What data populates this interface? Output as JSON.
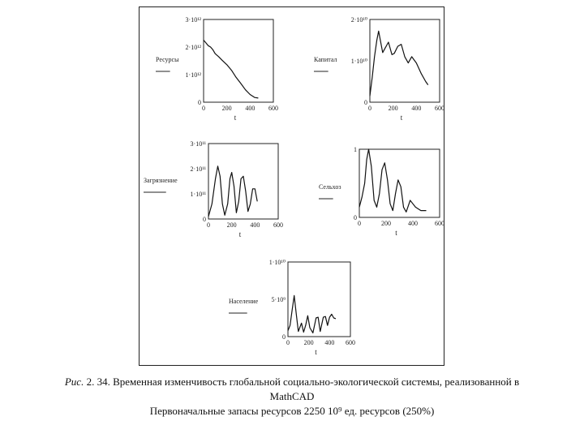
{
  "chart_data": [
    {
      "type": "line",
      "ylabel": "Ресурсы",
      "xlabel": "t",
      "xlim": [
        0,
        600
      ],
      "ylim": [
        0,
        3000000000000
      ],
      "x_ticks": [
        "0",
        "200",
        "400",
        "600"
      ],
      "y_ticks": [
        {
          "value": 3000000000000,
          "label": "3·10¹²"
        },
        {
          "value": 2000000000000,
          "label": "2·10¹²"
        },
        {
          "value": 1000000000000,
          "label": "1·10¹²"
        },
        {
          "value": 0,
          "label": "0"
        }
      ],
      "series": [
        {
          "x": [
            0,
            20,
            40,
            60,
            80,
            100,
            130,
            160,
            200,
            240,
            280,
            320,
            360,
            400,
            440,
            470
          ],
          "y": [
            2250000000000,
            2150000000000,
            2050000000000,
            2000000000000,
            1900000000000,
            1760000000000,
            1650000000000,
            1520000000000,
            1360000000000,
            1160000000000,
            900000000000,
            680000000000,
            450000000000,
            280000000000,
            170000000000,
            150000000000
          ]
        }
      ]
    },
    {
      "type": "line",
      "ylabel": "Капитал",
      "xlabel": "t",
      "xlim": [
        0,
        600
      ],
      "ylim": [
        0,
        20000000000
      ],
      "x_ticks": [
        "0",
        "200",
        "400",
        "600"
      ],
      "y_ticks": [
        {
          "value": 20000000000,
          "label": "2·10¹⁰"
        },
        {
          "value": 10000000000,
          "label": "1·10¹⁰"
        },
        {
          "value": 0,
          "label": "0"
        }
      ],
      "series": [
        {
          "x": [
            0,
            20,
            40,
            60,
            75,
            90,
            110,
            130,
            160,
            190,
            210,
            240,
            270,
            300,
            330,
            360,
            400,
            440,
            480,
            500
          ],
          "y": [
            1500000000,
            6000000000,
            11000000000,
            15000000000,
            17200000000,
            15000000000,
            12000000000,
            13000000000,
            14500000000,
            11500000000,
            11800000000,
            13500000000,
            14000000000,
            11000000000,
            9500000000,
            11000000000,
            9500000000,
            7000000000,
            5000000000,
            4200000000
          ]
        }
      ]
    },
    {
      "type": "line",
      "ylabel": "Загрязнение",
      "xlabel": "t",
      "xlim": [
        0,
        600
      ],
      "ylim": [
        0,
        300000000000
      ],
      "x_ticks": [
        "0",
        "200",
        "400",
        "600"
      ],
      "y_ticks": [
        {
          "value": 300000000000,
          "label": "3·10¹¹"
        },
        {
          "value": 200000000000,
          "label": "2·10¹¹"
        },
        {
          "value": 100000000000,
          "label": "1·10¹¹"
        },
        {
          "value": 0,
          "label": "0"
        }
      ],
      "series": [
        {
          "x": [
            0,
            30,
            60,
            80,
            100,
            120,
            140,
            165,
            185,
            200,
            220,
            240,
            260,
            280,
            300,
            320,
            340,
            360,
            380,
            400,
            420
          ],
          "y": [
            10000000000,
            60000000000,
            160000000000,
            210000000000,
            170000000000,
            60000000000,
            15000000000,
            60000000000,
            160000000000,
            185000000000,
            130000000000,
            25000000000,
            70000000000,
            160000000000,
            170000000000,
            110000000000,
            30000000000,
            60000000000,
            120000000000,
            120000000000,
            70000000000
          ]
        }
      ]
    },
    {
      "type": "line",
      "ylabel": "Сельхоз",
      "xlabel": "t",
      "xlim": [
        0,
        600
      ],
      "ylim": [
        0,
        1
      ],
      "x_ticks": [
        "0",
        "200",
        "400",
        "600"
      ],
      "y_ticks": [
        {
          "value": 1,
          "label": "1"
        },
        {
          "value": 0,
          "label": "0"
        }
      ],
      "series": [
        {
          "x": [
            0,
            20,
            40,
            55,
            70,
            90,
            110,
            130,
            150,
            170,
            190,
            210,
            230,
            250,
            270,
            290,
            310,
            330,
            350,
            380,
            420,
            460,
            500
          ],
          "y": [
            0.15,
            0.3,
            0.5,
            0.85,
            1.0,
            0.75,
            0.25,
            0.15,
            0.35,
            0.7,
            0.8,
            0.55,
            0.2,
            0.1,
            0.35,
            0.55,
            0.45,
            0.15,
            0.08,
            0.25,
            0.15,
            0.1,
            0.1
          ]
        }
      ]
    },
    {
      "type": "line",
      "ylabel": "Население",
      "xlabel": "t",
      "xlim": [
        0,
        600
      ],
      "ylim": [
        0,
        10000000000
      ],
      "x_ticks": [
        "0",
        "200",
        "400",
        "600"
      ],
      "y_ticks": [
        {
          "value": 10000000000,
          "label": "1·10¹⁰"
        },
        {
          "value": 5000000000,
          "label": "5·10⁹"
        },
        {
          "value": 0,
          "label": "0"
        }
      ],
      "series": [
        {
          "x": [
            0,
            20,
            40,
            60,
            80,
            100,
            130,
            150,
            170,
            190,
            210,
            240,
            270,
            290,
            310,
            340,
            360,
            380,
            400,
            420,
            440,
            460
          ],
          "y": [
            800000000,
            1500000000,
            3500000000,
            5500000000,
            3000000000,
            700000000,
            1800000000,
            600000000,
            1500000000,
            2800000000,
            1200000000,
            500000000,
            2500000000,
            2600000000,
            700000000,
            2600000000,
            2700000000,
            1500000000,
            2600000000,
            3000000000,
            2500000000,
            2400000000
          ]
        }
      ]
    }
  ],
  "caption": {
    "prefix": "Рис.",
    "line1": " 2. 34. Временная изменчивость глобальной социально-экологической системы, реализованной в",
    "line2": "MathCAD",
    "line3": "Первоначальные запасы ресурсов 2250 10⁹ ед. ресурсов (250%)"
  }
}
